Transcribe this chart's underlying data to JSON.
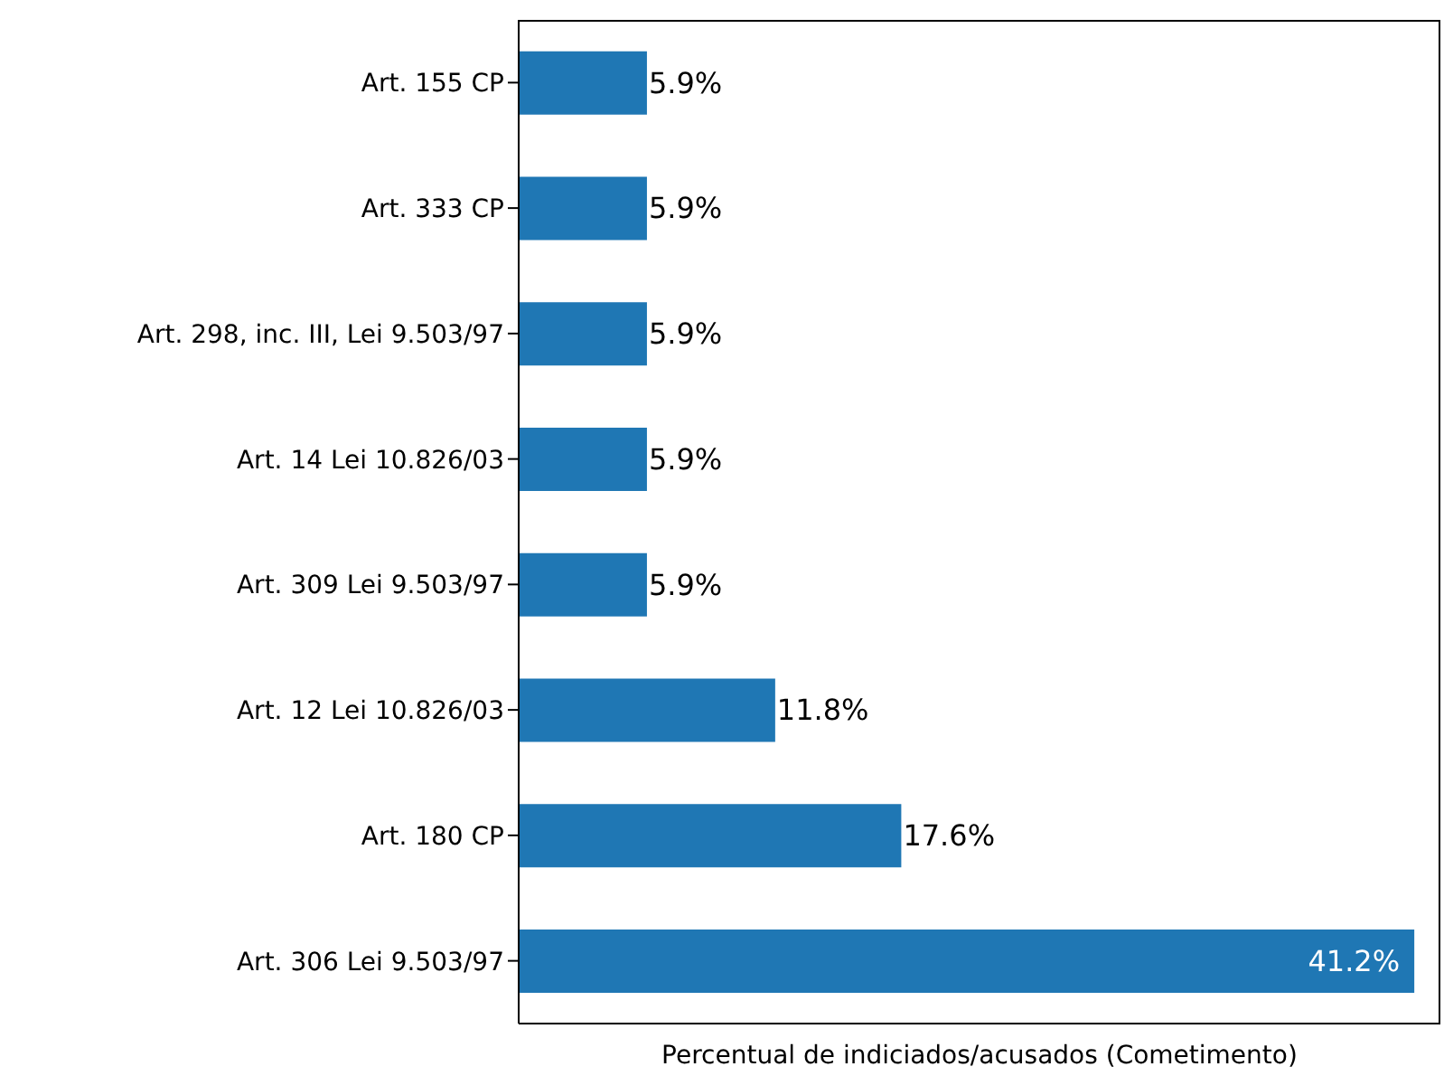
{
  "chart_data": {
    "type": "bar",
    "orientation": "horizontal",
    "xlabel": "Percentual de indiciados/acusados (Cometimento)",
    "categories": [
      "Art. 155 CP",
      "Art. 333 CP",
      "Art. 298, inc. III, Lei 9.503/97",
      "Art. 14 Lei 10.826/03",
      "Art. 309 Lei 9.503/97",
      "Art. 12 Lei 10.826/03",
      "Art. 180 CP",
      "Art. 306 Lei 9.503/97"
    ],
    "values": [
      5.9,
      5.9,
      5.9,
      5.9,
      5.9,
      11.8,
      17.6,
      41.2
    ],
    "value_labels": [
      "5.9%",
      "5.9%",
      "5.9%",
      "5.9%",
      "5.9%",
      "11.8%",
      "17.6%",
      "41.2%"
    ],
    "color": "#1f77b4",
    "xlim": [
      0,
      42.4
    ],
    "tick_labels": "y",
    "grid": false,
    "legend": false
  }
}
